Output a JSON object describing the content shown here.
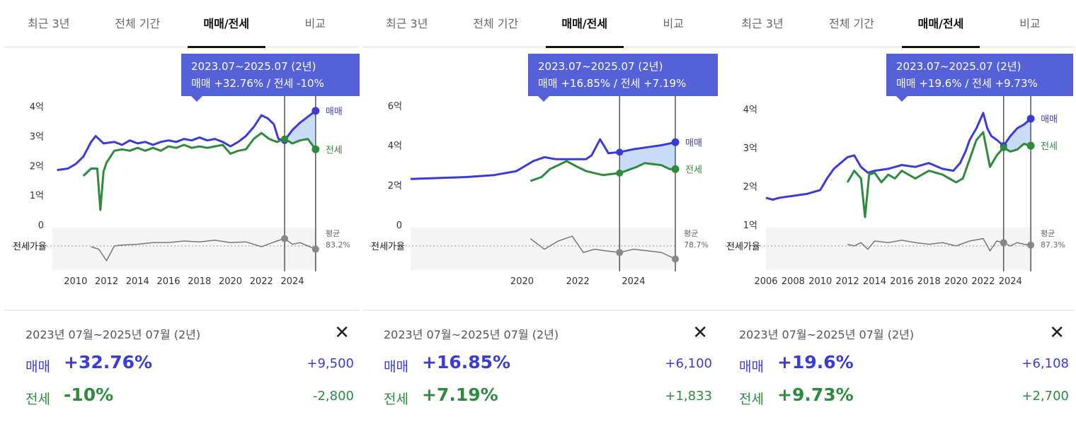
{
  "panels": [
    {
      "tabs": [
        {
          "label": "최근 3년",
          "active": false
        },
        {
          "label": "전체 기간",
          "active": false
        },
        {
          "label": "매매/전세",
          "active": true
        },
        {
          "label": "비교",
          "active": false
        }
      ],
      "tooltip": {
        "line1": "2023.07~2025.07 (2년)",
        "line2": "매매 +32.76%  /  전세 -10%"
      },
      "summary": {
        "period": "2023년 07월~2025년 07월 (2년)",
        "close_icon": "close-icon",
        "sale": {
          "label": "매매",
          "pct": "+32.76%",
          "amount": "+9,500"
        },
        "jeonse": {
          "label": "전세",
          "pct": "-10%",
          "amount": "-2,800"
        }
      }
    },
    {
      "tabs": [
        {
          "label": "최근 3년",
          "active": false
        },
        {
          "label": "전체 기간",
          "active": false
        },
        {
          "label": "매매/전세",
          "active": true
        },
        {
          "label": "비교",
          "active": false
        }
      ],
      "tooltip": {
        "line1": "2023.07~2025.07 (2년)",
        "line2": "매매 +16.85%  /  전세 +7.19%"
      },
      "summary": {
        "period": "2023년 07월~2025년 07월 (2년)",
        "close_icon": "close-icon",
        "sale": {
          "label": "매매",
          "pct": "+16.85%",
          "amount": "+6,100"
        },
        "jeonse": {
          "label": "전세",
          "pct": "+7.19%",
          "amount": "+1,833"
        }
      }
    },
    {
      "tabs": [
        {
          "label": "최근 3년",
          "active": false
        },
        {
          "label": "전체 기간",
          "active": false
        },
        {
          "label": "매매/전세",
          "active": true
        },
        {
          "label": "비교",
          "active": false
        }
      ],
      "tooltip": {
        "line1": "2023.07~2025.07 (2년)",
        "line2": "매매 +19.6%  /  전세 +9.73%"
      },
      "summary": {
        "period": "2023년 07월~2025년 07월 (2년)",
        "close_icon": "close-icon",
        "sale": {
          "label": "매매",
          "pct": "+19.6%",
          "amount": "+6,108"
        },
        "jeonse": {
          "label": "전세",
          "pct": "+9.73%",
          "amount": "+2,700"
        }
      }
    }
  ],
  "colors": {
    "sale": "#3b3bd6",
    "jeonse": "#2e8b3e",
    "ratio": "#777777",
    "tooltip": "#5561d6",
    "range_fill": "#bcd3f5"
  },
  "chart_data": [
    {
      "type": "line",
      "xlim": [
        2008.5,
        2025.6
      ],
      "xticks": [
        "2010",
        "2012",
        "2014",
        "2016",
        "2018",
        "2020",
        "2022",
        "2024"
      ],
      "xtick_values": [
        2010,
        2012,
        2014,
        2016,
        2018,
        2020,
        2022,
        2024
      ],
      "ylim": [
        0,
        4.3
      ],
      "yticks": [
        "0",
        "1억",
        "2억",
        "3억",
        "4억"
      ],
      "ytick_values": [
        0,
        1,
        2,
        3,
        4
      ],
      "ratio_label": "전세가율",
      "avg_label": "평균",
      "avg_value": "83.2%",
      "selection": [
        2023.5,
        2025.5
      ],
      "series": [
        {
          "name": "매매",
          "x": [
            2008.8,
            2009.5,
            2010.0,
            2010.5,
            2011.0,
            2011.3,
            2011.8,
            2012.5,
            2013.0,
            2013.5,
            2014.0,
            2014.5,
            2015.0,
            2015.5,
            2016.0,
            2016.5,
            2017.0,
            2017.5,
            2018.0,
            2018.5,
            2019.0,
            2019.5,
            2020.0,
            2020.5,
            2021.0,
            2021.5,
            2022.0,
            2022.4,
            2022.8,
            2023.1,
            2023.5,
            2024.0,
            2024.5,
            2025.0,
            2025.5
          ],
          "y": [
            1.85,
            1.9,
            2.05,
            2.3,
            2.8,
            3.0,
            2.75,
            2.8,
            2.7,
            2.85,
            2.75,
            2.8,
            2.7,
            2.8,
            2.85,
            2.8,
            2.9,
            2.85,
            2.95,
            2.85,
            2.9,
            2.8,
            2.65,
            2.8,
            3.0,
            3.3,
            3.7,
            3.6,
            3.4,
            2.9,
            2.85,
            3.2,
            3.45,
            3.65,
            3.85
          ]
        },
        {
          "name": "전세",
          "x": [
            2010.5,
            2011.0,
            2011.4,
            2011.6,
            2011.8,
            2012.0,
            2012.5,
            2013.0,
            2013.5,
            2014.0,
            2014.5,
            2015.0,
            2015.5,
            2016.0,
            2016.5,
            2017.0,
            2017.5,
            2018.0,
            2018.5,
            2019.0,
            2019.5,
            2020.0,
            2020.5,
            2021.0,
            2021.5,
            2022.0,
            2022.5,
            2023.0,
            2023.5,
            2024.0,
            2024.5,
            2025.0,
            2025.5
          ],
          "y": [
            1.65,
            1.9,
            1.9,
            0.5,
            1.8,
            2.1,
            2.5,
            2.55,
            2.5,
            2.6,
            2.5,
            2.6,
            2.5,
            2.65,
            2.6,
            2.7,
            2.6,
            2.65,
            2.6,
            2.65,
            2.7,
            2.4,
            2.5,
            2.55,
            2.9,
            3.1,
            2.9,
            2.8,
            2.9,
            2.75,
            2.85,
            2.9,
            2.55
          ]
        }
      ],
      "ratio_points": {
        "x": [
          2011.0,
          2011.5,
          2012.0,
          2012.5,
          2013.0,
          2014.0,
          2015.0,
          2016.0,
          2017.0,
          2018.0,
          2019.0,
          2020.0,
          2021.0,
          2022.0,
          2023.0,
          2023.5,
          2024.0,
          2024.5,
          2025.0,
          2025.5
        ],
        "y": [
          0.85,
          0.82,
          0.68,
          0.86,
          0.87,
          0.88,
          0.9,
          0.9,
          0.92,
          0.91,
          0.93,
          0.9,
          0.91,
          0.85,
          0.92,
          0.95,
          0.88,
          0.9,
          0.86,
          0.82
        ]
      }
    },
    {
      "type": "line",
      "xlim": [
        2016.0,
        2025.5
      ],
      "xticks": [
        "2020",
        "2022",
        "2024"
      ],
      "xtick_values": [
        2020,
        2022,
        2024
      ],
      "ylim": [
        0,
        6.4
      ],
      "yticks": [
        "0",
        "2억",
        "4억",
        "6억"
      ],
      "ytick_values": [
        0,
        2,
        4,
        6
      ],
      "ratio_label": "전세가율",
      "avg_label": "평균",
      "avg_value": "78.7%",
      "selection": [
        2023.5,
        2025.5
      ],
      "series": [
        {
          "name": "매매",
          "x": [
            2016.0,
            2017.0,
            2018.0,
            2019.0,
            2019.8,
            2020.4,
            2020.8,
            2021.2,
            2021.6,
            2022.0,
            2022.3,
            2022.5,
            2022.8,
            2023.1,
            2023.5,
            2024.0,
            2024.5,
            2025.0,
            2025.5
          ],
          "y": [
            2.3,
            2.35,
            2.4,
            2.5,
            2.7,
            3.2,
            3.4,
            3.3,
            3.3,
            3.3,
            3.3,
            3.5,
            4.3,
            3.6,
            3.65,
            3.8,
            3.9,
            4.0,
            4.15
          ]
        },
        {
          "name": "전세",
          "x": [
            2020.3,
            2020.7,
            2021.0,
            2021.3,
            2021.6,
            2022.0,
            2022.3,
            2022.6,
            2022.9,
            2023.2,
            2023.5,
            2023.8,
            2024.1,
            2024.4,
            2024.7,
            2025.0,
            2025.3,
            2025.5
          ],
          "y": [
            2.2,
            2.4,
            2.8,
            3.0,
            3.2,
            2.9,
            2.7,
            2.6,
            2.5,
            2.55,
            2.6,
            2.75,
            2.9,
            3.1,
            3.05,
            3.0,
            2.8,
            2.8
          ]
        }
      ],
      "ratio_points": {
        "x": [
          2020.3,
          2020.8,
          2021.3,
          2021.8,
          2022.2,
          2022.6,
          2023.0,
          2023.5,
          2024.0,
          2024.5,
          2025.0,
          2025.5
        ],
        "y": [
          0.95,
          0.82,
          0.92,
          0.98,
          0.78,
          0.82,
          0.8,
          0.78,
          0.82,
          0.8,
          0.78,
          0.7
        ]
      }
    },
    {
      "type": "line",
      "xlim": [
        2006.0,
        2025.6
      ],
      "xticks": [
        "2006",
        "2008",
        "2010",
        "2012",
        "2014",
        "2016",
        "2018",
        "2020",
        "2022",
        "2024"
      ],
      "xtick_values": [
        2006,
        2008,
        2010,
        2012,
        2014,
        2016,
        2018,
        2020,
        2022,
        2024
      ],
      "ylim": [
        1,
        4.3
      ],
      "yticks": [
        "1억",
        "2억",
        "3억",
        "4억"
      ],
      "ytick_values": [
        1,
        2,
        3,
        4
      ],
      "ratio_label": "전세가율",
      "avg_label": "평균",
      "avg_value": "87.3%",
      "selection": [
        2023.5,
        2025.5
      ],
      "series": [
        {
          "name": "매매",
          "x": [
            2006.0,
            2006.5,
            2007.0,
            2008.0,
            2009.0,
            2010.0,
            2010.5,
            2011.0,
            2011.5,
            2012.0,
            2012.5,
            2013.0,
            2013.5,
            2014.0,
            2015.0,
            2016.0,
            2017.0,
            2018.0,
            2019.0,
            2019.8,
            2020.3,
            2020.7,
            2021.0,
            2021.5,
            2022.0,
            2022.3,
            2022.6,
            2023.0,
            2023.5,
            2024.0,
            2024.5,
            2025.0,
            2025.5
          ],
          "y": [
            1.7,
            1.65,
            1.7,
            1.75,
            1.8,
            1.9,
            2.2,
            2.45,
            2.6,
            2.75,
            2.8,
            2.5,
            2.35,
            2.4,
            2.45,
            2.55,
            2.5,
            2.6,
            2.45,
            2.4,
            2.6,
            2.9,
            3.2,
            3.5,
            3.9,
            3.5,
            3.3,
            3.2,
            3.05,
            3.3,
            3.5,
            3.6,
            3.75
          ]
        },
        {
          "name": "전세",
          "x": [
            2012.0,
            2012.5,
            2013.0,
            2013.3,
            2013.6,
            2014.0,
            2014.5,
            2015.0,
            2015.5,
            2016.0,
            2017.0,
            2018.0,
            2019.0,
            2020.0,
            2020.5,
            2021.0,
            2021.5,
            2022.0,
            2022.5,
            2023.0,
            2023.5,
            2024.0,
            2024.5,
            2025.0,
            2025.5
          ],
          "y": [
            2.1,
            2.4,
            2.2,
            1.2,
            2.3,
            2.35,
            2.1,
            2.3,
            2.2,
            2.4,
            2.2,
            2.4,
            2.3,
            2.1,
            2.2,
            2.7,
            3.2,
            3.4,
            2.5,
            2.8,
            3.0,
            2.9,
            2.95,
            3.1,
            3.05
          ]
        }
      ],
      "ratio_points": {
        "x": [
          2012.0,
          2012.5,
          2013.0,
          2013.5,
          2014.0,
          2015.0,
          2016.0,
          2017.0,
          2018.0,
          2019.0,
          2020.0,
          2021.0,
          2022.0,
          2022.5,
          2023.0,
          2023.5,
          2024.0,
          2024.5,
          2025.0,
          2025.5
        ],
        "y": [
          0.88,
          0.86,
          0.9,
          0.82,
          0.92,
          0.9,
          0.93,
          0.9,
          0.88,
          0.9,
          0.86,
          0.92,
          0.95,
          0.8,
          0.92,
          0.9,
          0.86,
          0.9,
          0.88,
          0.87
        ]
      }
    }
  ]
}
